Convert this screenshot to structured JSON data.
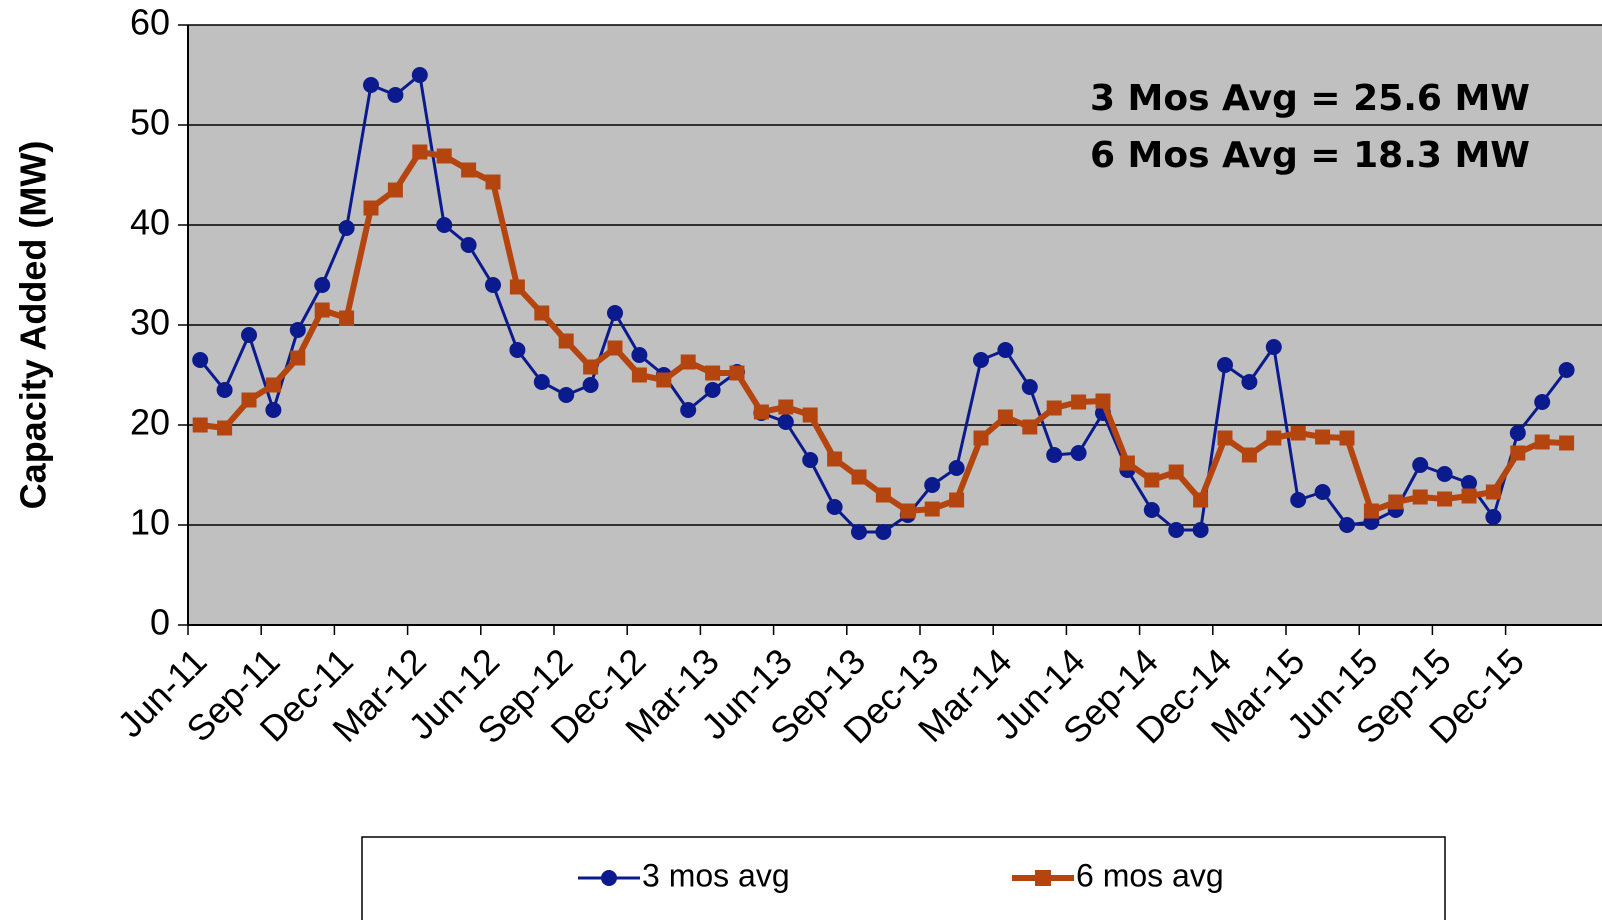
{
  "chart_data": {
    "type": "line",
    "y_label": "Capacity Added (MW)",
    "annotations": [
      {
        "text": "3 Mos Avg = 25.6 MW",
        "color": "#1a1a9c"
      },
      {
        "text": "6 Mos Avg = 18.3 MW",
        "color": "#7a1010"
      }
    ],
    "categories": [
      "Jun-11",
      null,
      null,
      "Sep-11",
      null,
      null,
      "Dec-11",
      null,
      null,
      "Mar-12",
      null,
      null,
      "Jun-12",
      null,
      null,
      "Sep-12",
      null,
      null,
      "Dec-12",
      null,
      null,
      "Mar-13",
      null,
      null,
      "Jun-13",
      null,
      null,
      "Sep-13",
      null,
      null,
      "Dec-13",
      null,
      null,
      "Mar-14",
      null,
      null,
      "Jun-14",
      null,
      null,
      "Sep-14",
      null,
      null,
      "Dec-14",
      null,
      null,
      "Mar-15",
      null,
      null,
      "Jun-15",
      null,
      null,
      "Sep-15",
      null,
      null,
      "Dec-15",
      null,
      null
    ],
    "series": [
      {
        "name": "3 mos avg",
        "color": "#0b1a8c",
        "marker": "circle",
        "values": [
          26.5,
          23.5,
          29,
          21.5,
          29.5,
          34,
          39.7,
          54,
          53,
          55,
          40,
          38,
          34,
          27.5,
          24.3,
          23,
          24,
          31.2,
          27,
          25,
          21.5,
          23.5,
          25.3,
          21.2,
          20.3,
          16.5,
          11.8,
          9.3,
          9.3,
          11,
          14,
          15.7,
          26.5,
          27.5,
          23.8,
          17,
          17.2,
          21.2,
          15.5,
          11.5,
          9.5,
          9.5,
          26,
          24.3,
          27.8,
          12.5,
          13.3,
          10,
          10.3,
          11.5,
          16,
          15.1,
          14.2,
          10.8,
          19.2,
          22.3,
          25.5
        ]
      },
      {
        "name": "6 mos avg",
        "color": "#b5450f",
        "marker": "square",
        "values": [
          20,
          19.7,
          22.5,
          24,
          26.7,
          31.5,
          30.7,
          41.7,
          43.5,
          47.3,
          46.9,
          45.5,
          44.3,
          33.8,
          31.2,
          28.4,
          25.8,
          27.7,
          25,
          24.5,
          26.3,
          25.2,
          25.2,
          21.3,
          21.8,
          21,
          16.6,
          14.8,
          13,
          11.4,
          11.6,
          12.5,
          18.7,
          20.8,
          19.8,
          21.7,
          22.3,
          22.4,
          16.2,
          14.5,
          15.3,
          12.5,
          18.7,
          17,
          18.7,
          19.2,
          18.8,
          18.7,
          11.4,
          12.3,
          12.8,
          12.6,
          12.9,
          13.3,
          17.2,
          18.3,
          18.2
        ]
      }
    ],
    "ylim": [
      0,
      60
    ],
    "yticks": [
      0,
      10,
      20,
      30,
      40,
      50,
      60
    ],
    "grid": true,
    "legend": "bottom"
  }
}
